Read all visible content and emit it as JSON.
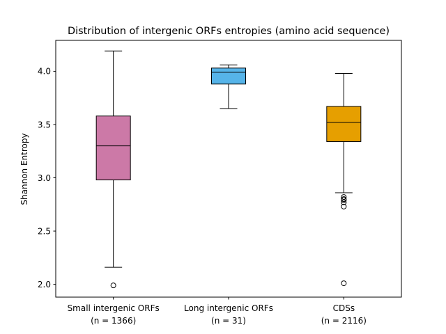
{
  "chart_data": {
    "type": "boxplot",
    "title": "Distribution of intergenic ORFs entropies (amino acid sequence)",
    "ylabel": "Shannon Entropy",
    "ylim": [
      1.88,
      4.29
    ],
    "yticks": [
      2.0,
      2.5,
      3.0,
      3.5,
      4.0
    ],
    "ytick_labels": [
      "2.0",
      "2.5",
      "3.0",
      "3.5",
      "4.0"
    ],
    "grid": false,
    "categories": [
      {
        "line1": "Small intergenic ORFs",
        "line2": "(n = 1366)"
      },
      {
        "line1": "Long intergenic ORFs",
        "line2": "(n = 31)"
      },
      {
        "line1": "CDSs",
        "line2": "(n = 2116)"
      }
    ],
    "boxes": [
      {
        "whisker_low": 2.16,
        "q1": 2.98,
        "median": 3.3,
        "q3": 3.58,
        "whisker_high": 4.19,
        "outliers": [
          1.99
        ],
        "color": "#cc79a7"
      },
      {
        "whisker_low": 3.65,
        "q1": 3.88,
        "median": 3.99,
        "q3": 4.03,
        "whisker_high": 4.06,
        "outliers": [],
        "color": "#56b4e9"
      },
      {
        "whisker_low": 2.86,
        "q1": 3.34,
        "median": 3.52,
        "q3": 3.67,
        "whisker_high": 3.98,
        "outliers": [
          2.82,
          2.8,
          2.79,
          2.77,
          2.73,
          2.01
        ],
        "color": "#e69f00"
      }
    ]
  }
}
